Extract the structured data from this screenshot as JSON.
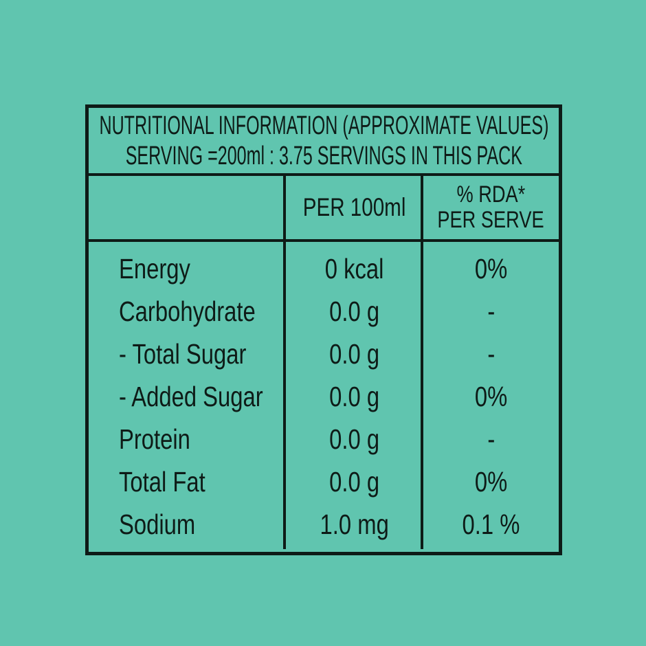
{
  "colors": {
    "background": "#60c5af",
    "ink": "#0e1b17"
  },
  "label": {
    "title_line1": "NUTRITIONAL INFORMATION (APPROXIMATE VALUES)",
    "title_line2": "SERVING =200ml : 3.75 SERVINGS IN THIS PACK"
  },
  "table": {
    "header": {
      "col1": "",
      "col2": "PER 100ml",
      "col3_line1": "% RDA*",
      "col3_line2": "PER SERVE"
    },
    "rows": [
      {
        "label": "Energy",
        "per_100ml": "0 kcal",
        "rda_per_serve": "0%"
      },
      {
        "label": "Carbohydrate",
        "per_100ml": "0.0 g",
        "rda_per_serve": "-"
      },
      {
        "label": "- Total Sugar",
        "per_100ml": "0.0 g",
        "rda_per_serve": "-"
      },
      {
        "label": "- Added Sugar",
        "per_100ml": "0.0 g",
        "rda_per_serve": "0%"
      },
      {
        "label": "Protein",
        "per_100ml": "0.0 g",
        "rda_per_serve": "-"
      },
      {
        "label": "Total Fat",
        "per_100ml": "0.0 g",
        "rda_per_serve": "0%"
      },
      {
        "label": "Sodium",
        "per_100ml": "1.0 mg",
        "rda_per_serve": "0.1 %"
      }
    ]
  }
}
